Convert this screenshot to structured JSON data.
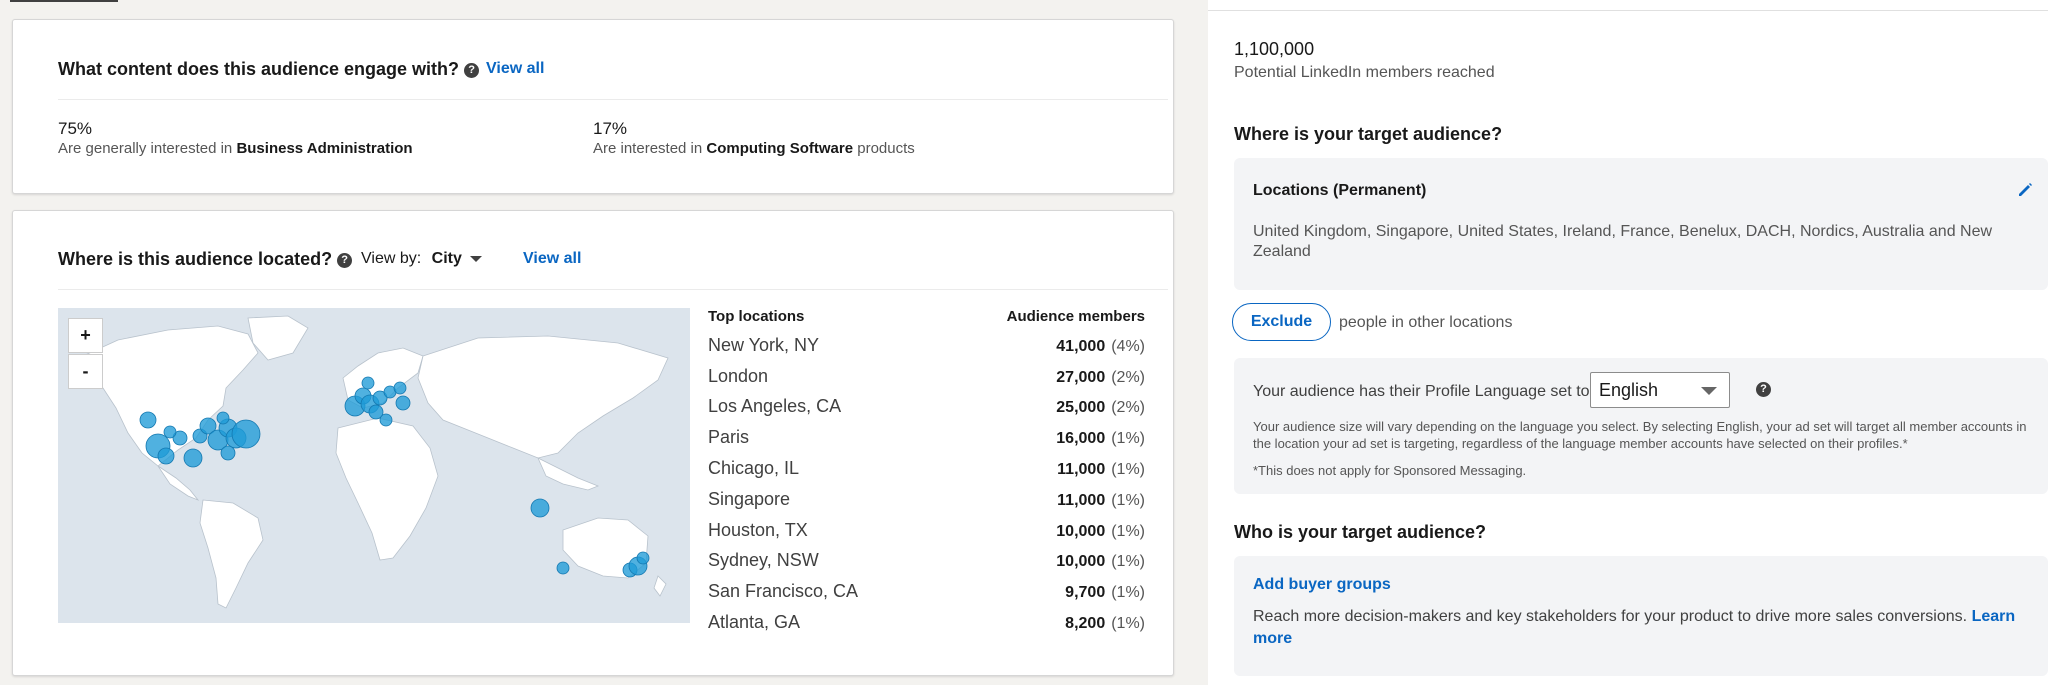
{
  "engage": {
    "title": "What content does this audience engage with?",
    "view_all": "View all",
    "stats": [
      {
        "pct": "75%",
        "prefix": "Are generally interested in ",
        "bold": "Business Administration",
        "suffix": ""
      },
      {
        "pct": "17%",
        "prefix": "Are interested in ",
        "bold": "Computing Software",
        "suffix": " products"
      }
    ]
  },
  "located": {
    "title": "Where is this audience located?",
    "view_by_label": "View by:",
    "view_by_value": "City",
    "view_all": "View all",
    "map": {
      "zoom_in": "+",
      "zoom_out": "-"
    },
    "table": {
      "col1": "Top locations",
      "col2": "Audience members",
      "rows": [
        {
          "city": "New York, NY",
          "count": "41,000",
          "pct": "(4%)"
        },
        {
          "city": "London",
          "count": "27,000",
          "pct": "(2%)"
        },
        {
          "city": "Los Angeles, CA",
          "count": "25,000",
          "pct": "(2%)"
        },
        {
          "city": "Paris",
          "count": "16,000",
          "pct": "(1%)"
        },
        {
          "city": "Chicago, IL",
          "count": "11,000",
          "pct": "(1%)"
        },
        {
          "city": "Singapore",
          "count": "11,000",
          "pct": "(1%)"
        },
        {
          "city": "Houston, TX",
          "count": "10,000",
          "pct": "(1%)"
        },
        {
          "city": "Sydney, NSW",
          "count": "10,000",
          "pct": "(1%)"
        },
        {
          "city": "San Francisco, CA",
          "count": "9,700",
          "pct": "(1%)"
        },
        {
          "city": "Atlanta, GA",
          "count": "8,200",
          "pct": "(1%)"
        }
      ]
    }
  },
  "right_panel": {
    "reach_value": "1,100,000",
    "reach_label": "Potential LinkedIn members reached",
    "where_heading": "Where is your target audience?",
    "locations_title": "Locations (Permanent)",
    "locations_list": "United Kingdom, Singapore, United States, Ireland, France, Benelux, DACH, Nordics, Australia and New Zealand",
    "exclude_button": "Exclude",
    "exclude_text": "people in other locations",
    "language_label": "Your audience has their Profile Language set to",
    "language_value": "English",
    "language_note": "Your audience size will vary depending on the language you select. By selecting English, your ad set will target all member accounts in the location your ad set is targeting, regardless of the language member accounts have selected on their profiles.*",
    "language_footnote": "*This does not apply for Sponsored Messaging.",
    "who_heading": "Who is your target audience?",
    "buyer_groups_link": "Add buyer groups",
    "buyer_groups_text": "Reach more decision-makers and key stakeholders for your product to drive more sales conversions.",
    "learn_more": "Learn more"
  },
  "colors": {
    "accent": "#0a66c2",
    "map_bubble": "#1f9bd7",
    "map_bg": "#dce4ec"
  }
}
